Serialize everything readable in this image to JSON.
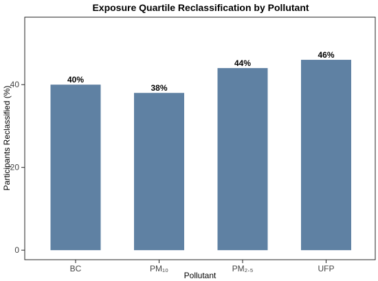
{
  "chart_data": {
    "type": "bar",
    "title": "Exposure Quartile Reclassification by Pollutant",
    "xlabel": "Pollutant",
    "ylabel": "Participants Reclassified (%)",
    "categories": [
      "BC",
      "PM₁₀",
      "PM₂.₅",
      "UFP"
    ],
    "values": [
      40,
      38,
      44,
      46
    ],
    "data_labels": [
      "40%",
      "38%",
      "44%",
      "46%"
    ],
    "ylim": [
      -2.3,
      56.3
    ],
    "yticks": [
      0,
      20,
      40
    ],
    "ytick_labels": [
      "0",
      "20",
      "40"
    ],
    "grid": false,
    "bar_color": "#5f81a3"
  }
}
